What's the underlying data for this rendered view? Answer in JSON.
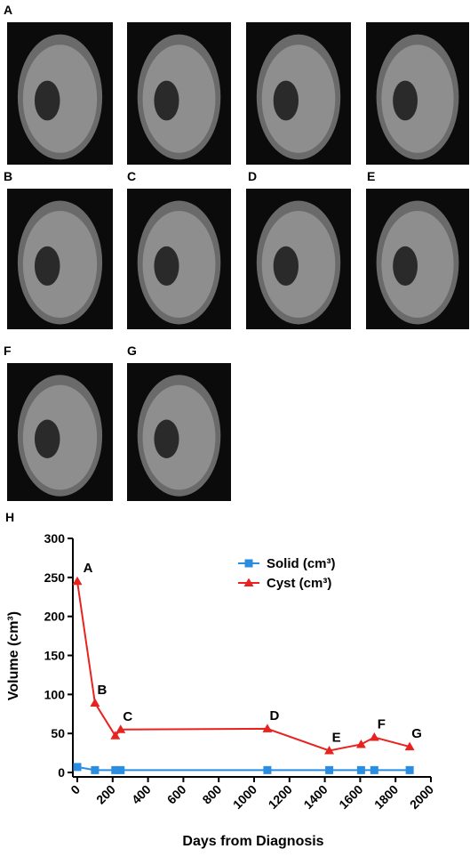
{
  "panels": [
    "A",
    "B",
    "C",
    "D",
    "E",
    "F",
    "G"
  ],
  "chart_label": "H",
  "chart_data": {
    "type": "line",
    "x_label": "Days from Diagnosis",
    "y_label": "Volume (cm³)",
    "x": [
      0,
      100,
      215,
      245,
      1075,
      1425,
      1605,
      1680,
      1880
    ],
    "series": [
      {
        "name": "Solid (cm³)",
        "color": "#2b8de0",
        "marker": "square",
        "values": [
          7,
          3,
          3,
          3,
          3,
          3,
          3,
          3,
          3
        ]
      },
      {
        "name": "Cyst (cm³)",
        "color": "#e8231f",
        "marker": "triangle",
        "values": [
          245,
          89,
          47,
          55,
          56,
          28,
          36,
          45,
          33
        ],
        "point_labels": [
          "A",
          "B",
          null,
          "C",
          "D",
          "E",
          null,
          "F",
          "G"
        ]
      }
    ],
    "xlim": [
      0,
      2000
    ],
    "xticks": [
      0,
      200,
      400,
      600,
      800,
      1000,
      1200,
      1400,
      1600,
      1800,
      2000
    ],
    "ylim": [
      0,
      300
    ],
    "yticks": [
      0,
      50,
      100,
      150,
      200,
      250,
      300
    ],
    "legend": "upper right"
  }
}
